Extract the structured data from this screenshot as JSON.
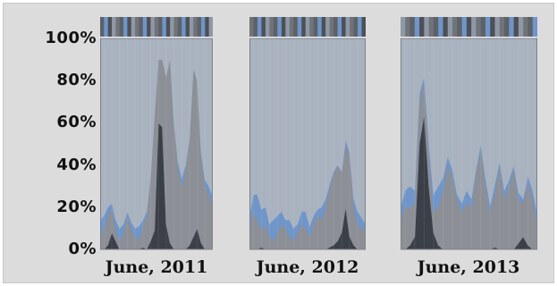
{
  "chart_data": {
    "type": "area",
    "stacked_percent": true,
    "ylim": [
      0,
      100
    ],
    "y_ticks": [
      "100%",
      "80%",
      "60%",
      "40%",
      "20%",
      "0%"
    ],
    "panels": [
      {
        "label": "June, 2011",
        "x": [
          0,
          1,
          2,
          3,
          4,
          5,
          6,
          7,
          8,
          9,
          10,
          11,
          12,
          13,
          14,
          15,
          16,
          17,
          18,
          19,
          20,
          21,
          22,
          23,
          24,
          25,
          26,
          27,
          28,
          29
        ],
        "series": [
          {
            "color": "#3b3f47",
            "values": [
              0,
              0,
              2,
              8,
              4,
              0,
              0,
              0,
              0,
              0,
              0,
              1,
              0,
              4,
              9,
              60,
              58,
              12,
              3,
              0,
              0,
              0,
              0,
              2,
              6,
              10,
              3,
              0,
              0,
              0
            ]
          },
          {
            "color": "#8c8f96",
            "values": [
              6,
              10,
              14,
              12,
              6,
              4,
              8,
              16,
              10,
              6,
              5,
              10,
              16,
              30,
              55,
              30,
              32,
              70,
              88,
              60,
              40,
              30,
              38,
              50,
              80,
              70,
              42,
              30,
              26,
              20
            ]
          },
          {
            "color": "#6f95c9",
            "values": [
              8,
              6,
              4,
              2,
              4,
              6,
              4,
              2,
              3,
              4,
              6,
              3,
              2,
              1,
              0,
              0,
              0,
              0,
              0,
              1,
              2,
              4,
              2,
              1,
              0,
              0,
              1,
              3,
              4,
              5
            ]
          },
          {
            "color": "#a9b2bf",
            "values": [
              86,
              84,
              80,
              78,
              86,
              90,
              88,
              82,
              87,
              90,
              89,
              86,
              82,
              65,
              36,
              10,
              10,
              18,
              9,
              39,
              58,
              66,
              60,
              47,
              14,
              20,
              54,
              67,
              70,
              75
            ]
          }
        ]
      },
      {
        "label": "June, 2012",
        "x": [
          0,
          1,
          2,
          3,
          4,
          5,
          6,
          7,
          8,
          9,
          10,
          11,
          12,
          13,
          14,
          15,
          16,
          17,
          18,
          19,
          20,
          21,
          22,
          23,
          24,
          25,
          26,
          27,
          28,
          29
        ],
        "series": [
          {
            "color": "#3b3f47",
            "values": [
              0,
              0,
              0,
              1,
              0,
              0,
              0,
              0,
              0,
              0,
              0,
              0,
              0,
              0,
              0,
              0,
              0,
              0,
              0,
              0,
              1,
              2,
              4,
              8,
              20,
              6,
              2,
              0,
              0,
              0
            ]
          },
          {
            "color": "#8c8f96",
            "values": [
              10,
              18,
              14,
              8,
              12,
              6,
              4,
              8,
              12,
              10,
              6,
              4,
              8,
              12,
              10,
              6,
              12,
              16,
              14,
              20,
              28,
              34,
              36,
              28,
              30,
              38,
              18,
              12,
              10,
              8
            ]
          },
          {
            "color": "#6f95c9",
            "values": [
              6,
              8,
              12,
              10,
              8,
              6,
              10,
              8,
              6,
              4,
              8,
              6,
              4,
              6,
              8,
              5,
              4,
              3,
              6,
              4,
              2,
              1,
              0,
              1,
              2,
              2,
              4,
              6,
              5,
              4
            ]
          },
          {
            "color": "#a9b2bf",
            "values": [
              84,
              74,
              74,
              81,
              80,
              88,
              86,
              84,
              82,
              86,
              86,
              90,
              88,
              82,
              82,
              89,
              84,
              81,
              80,
              76,
              69,
              63,
              60,
              63,
              48,
              54,
              76,
              82,
              85,
              88
            ]
          }
        ]
      },
      {
        "label": "June, 2013",
        "x": [
          0,
          1,
          2,
          3,
          4,
          5,
          6,
          7,
          8,
          9,
          10,
          11,
          12,
          13,
          14,
          15,
          16,
          17,
          18,
          19,
          20,
          21,
          22,
          23,
          24,
          25,
          26,
          27,
          28,
          29
        ],
        "series": [
          {
            "color": "#3b3f47",
            "values": [
              0,
              0,
              2,
              6,
              50,
              64,
              30,
              8,
              2,
              0,
              0,
              0,
              0,
              0,
              0,
              0,
              0,
              0,
              0,
              0,
              1,
              0,
              0,
              0,
              0,
              3,
              6,
              2,
              0,
              0
            ]
          },
          {
            "color": "#8c8f96",
            "values": [
              14,
              20,
              18,
              16,
              20,
              16,
              14,
              10,
              18,
              28,
              40,
              34,
              24,
              18,
              22,
              20,
              36,
              48,
              30,
              18,
              26,
              40,
              24,
              30,
              38,
              20,
              16,
              30,
              24,
              12
            ]
          },
          {
            "color": "#6f95c9",
            "values": [
              6,
              8,
              10,
              6,
              4,
              2,
              6,
              8,
              10,
              6,
              4,
              4,
              2,
              4,
              6,
              4,
              2,
              2,
              4,
              3,
              4,
              2,
              4,
              3,
              2,
              4,
              2,
              3,
              4,
              5
            ]
          },
          {
            "color": "#a9b2bf",
            "values": [
              80,
              72,
              70,
              72,
              26,
              18,
              50,
              74,
              70,
              66,
              56,
              62,
              74,
              78,
              72,
              76,
              62,
              50,
              66,
              79,
              69,
              58,
              72,
              67,
              60,
              73,
              76,
              65,
              72,
              83
            ]
          }
        ]
      }
    ]
  }
}
